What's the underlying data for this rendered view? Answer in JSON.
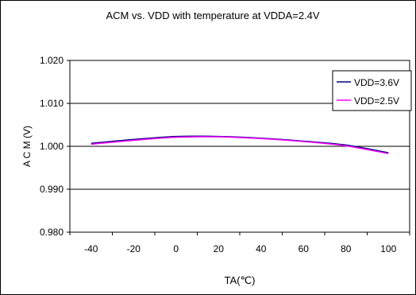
{
  "chart_data": {
    "type": "line",
    "title": "ACM vs. VDD with temperature at VDDA=2.4V",
    "xlabel": "TA(℃)",
    "ylabel": "A C M (V)",
    "x_ticks": [
      -40,
      -20,
      0,
      20,
      40,
      60,
      80,
      100
    ],
    "y_ticks": [
      "0.980",
      "0.990",
      "1.000",
      "1.010",
      "1.020"
    ],
    "xlim": [
      -50,
      110
    ],
    "ylim": [
      0.98,
      1.02
    ],
    "grid": "horizontal",
    "legend_position": "top-right",
    "series": [
      {
        "name": "VDD=3.6V",
        "color": "#000080",
        "x": [
          -40,
          -20,
          0,
          20,
          40,
          60,
          80,
          100
        ],
        "y": [
          1.0007,
          1.0016,
          1.0023,
          1.0023,
          1.0019,
          1.0012,
          1.0003,
          0.9985
        ]
      },
      {
        "name": "VDD=2.5V",
        "color": "#ff00ff",
        "x": [
          -40,
          -20,
          0,
          20,
          40,
          60,
          80,
          100
        ],
        "y": [
          1.0005,
          1.0014,
          1.0021,
          1.0022,
          1.0018,
          1.0011,
          1.0001,
          0.9983
        ]
      }
    ]
  }
}
